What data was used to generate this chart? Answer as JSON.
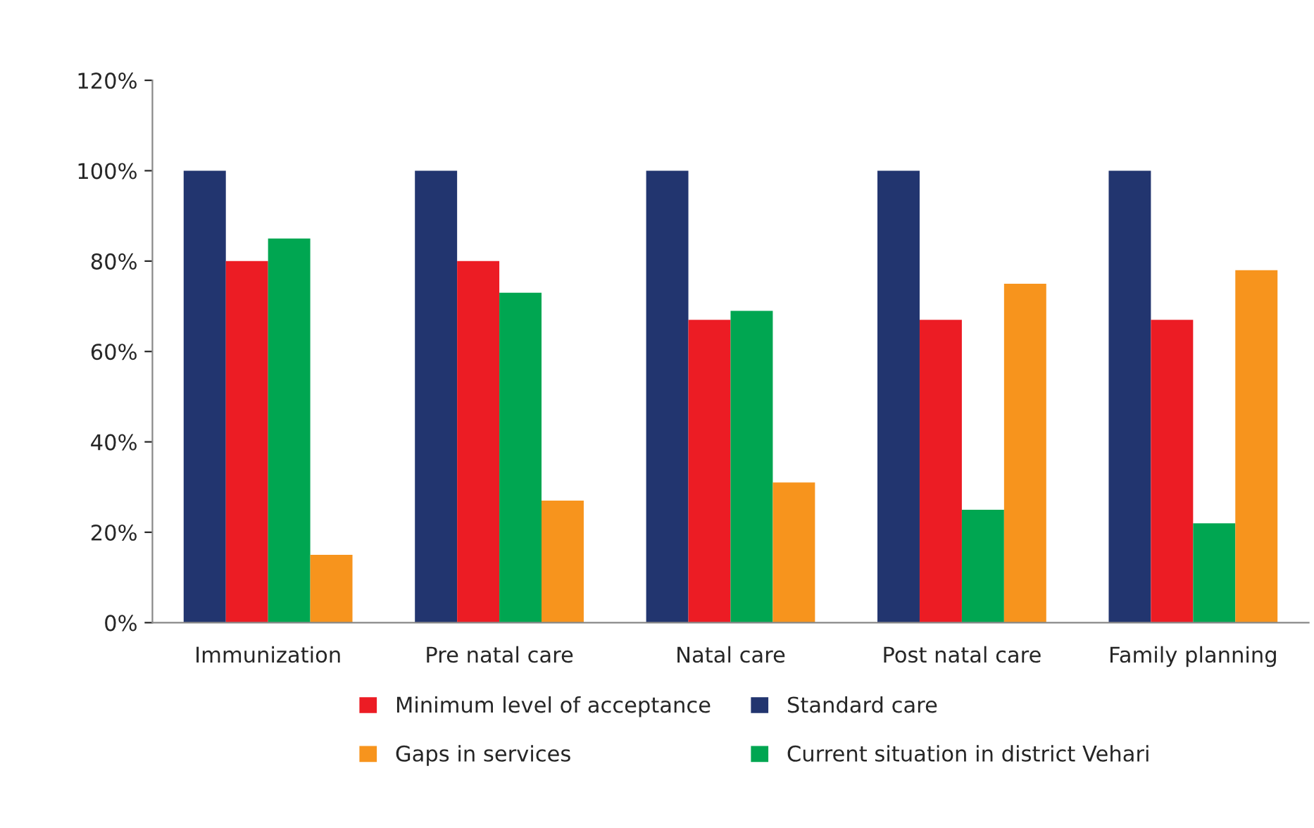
{
  "chart_data": {
    "type": "bar",
    "categories": [
      "Immunization",
      "Pre natal care",
      "Natal care",
      "Post natal care",
      "Family planning"
    ],
    "series": [
      {
        "name": "Standard care",
        "color": "#22356f",
        "values": [
          100,
          100,
          100,
          100,
          100
        ]
      },
      {
        "name": "Minimum level of acceptance",
        "color": "#ec1c24",
        "values": [
          80,
          80,
          67,
          67,
          67
        ]
      },
      {
        "name": "Current situation in district Vehari",
        "color": "#00a651",
        "values": [
          85,
          73,
          69,
          25,
          22
        ]
      },
      {
        "name": "Gaps in services",
        "color": "#f7941d",
        "values": [
          15,
          27,
          31,
          75,
          78
        ]
      }
    ],
    "ylim": [
      0,
      120
    ],
    "yticks": [
      {
        "value": 0,
        "label": "0%"
      },
      {
        "value": 20,
        "label": "20%"
      },
      {
        "value": 40,
        "label": "40%"
      },
      {
        "value": 60,
        "label": "60%"
      },
      {
        "value": 80,
        "label": "80%"
      },
      {
        "value": 100,
        "label": "100%"
      },
      {
        "value": 120,
        "label": "120%"
      }
    ],
    "grid": false,
    "legend": "bottom"
  }
}
